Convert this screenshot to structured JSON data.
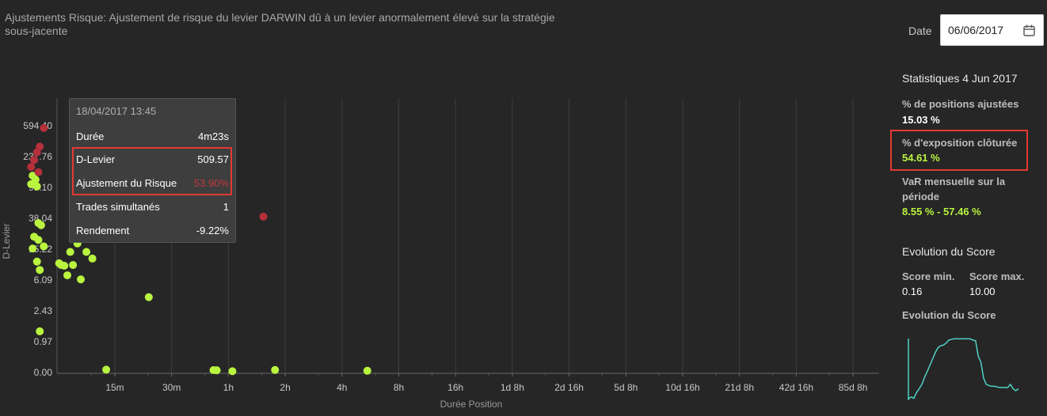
{
  "chart_data": {
    "type": "scatter",
    "title": "Ajustements Risque: Ajustement de risque du levier DARWIN dû à un levier anormalement élevé sur la stratégie sous-jacente",
    "xlabel": "Durée Position",
    "ylabel": "D-Levier",
    "x_scale": "log",
    "y_scale": "log",
    "x_ticks": [
      "15m",
      "30m",
      "1h",
      "2h",
      "4h",
      "8h",
      "16h",
      "1d 8h",
      "2d 16h",
      "5d 8h",
      "10d 16h",
      "21d 8h",
      "42d 16h",
      "85d 8h"
    ],
    "y_ticks": [
      "0.00",
      "0.97",
      "2.43",
      "6.09",
      "15.22",
      "38.04",
      "95.10",
      "237.76",
      "594.40"
    ],
    "y_top_tick": "594.40",
    "series": [
      {
        "color": "#b9f53f",
        "points": [
          {
            "x_min": 5.5,
            "y": 135
          },
          {
            "x_min": 5.7,
            "y": 120
          },
          {
            "x_min": 5.4,
            "y": 105
          },
          {
            "x_min": 5.8,
            "y": 98
          },
          {
            "x_min": 5.9,
            "y": 33
          },
          {
            "x_min": 6.1,
            "y": 31
          },
          {
            "x_min": 5.6,
            "y": 22
          },
          {
            "x_min": 5.9,
            "y": 20
          },
          {
            "x_min": 5.5,
            "y": 15.5
          },
          {
            "x_min": 6.3,
            "y": 16.5
          },
          {
            "x_min": 5.8,
            "y": 10.5
          },
          {
            "x_min": 6.0,
            "y": 8.2
          },
          {
            "x_min": 7.6,
            "y": 10.0
          },
          {
            "x_min": 7.8,
            "y": 9.5
          },
          {
            "x_min": 8.1,
            "y": 9.3
          },
          {
            "x_min": 8.4,
            "y": 7.0
          },
          {
            "x_min": 8.7,
            "y": 14.0
          },
          {
            "x_min": 9.0,
            "y": 9.5
          },
          {
            "x_min": 9.5,
            "y": 18.0
          },
          {
            "x_min": 9.9,
            "y": 6.2
          },
          {
            "x_min": 10.6,
            "y": 14.0
          },
          {
            "x_min": 11.4,
            "y": 11.5
          },
          {
            "x_min": 22.7,
            "y": 3.65
          },
          {
            "x_min": 6.0,
            "y": 1.32
          },
          {
            "x_min": 13.5,
            "y": 0.09
          },
          {
            "x_min": 50.0,
            "y": 0.075
          },
          {
            "x_min": 52.0,
            "y": 0.07
          },
          {
            "x_min": 63.0,
            "y": 0.04
          },
          {
            "x_min": 106.0,
            "y": 0.08
          },
          {
            "x_min": 327.0,
            "y": 0.055
          }
        ]
      },
      {
        "color": "#b5303a",
        "points": [
          {
            "x_min": 6.3,
            "y": 555
          },
          {
            "x_min": 6.0,
            "y": 320
          },
          {
            "x_min": 5.8,
            "y": 270
          },
          {
            "x_min": 5.6,
            "y": 215
          },
          {
            "x_min": 5.4,
            "y": 175
          },
          {
            "x_min": 5.9,
            "y": 150
          },
          {
            "x_min": 92.0,
            "y": 40
          }
        ]
      }
    ],
    "tooltip": {
      "date": "18/04/2017 13:45",
      "rows": [
        {
          "label": "Durée",
          "value": "4m23s"
        },
        {
          "label": "D-Levier",
          "value": "509.57"
        },
        {
          "label": "Ajustement du Risque",
          "value": "53.90%"
        },
        {
          "label": "Trades simultanés",
          "value": "1"
        },
        {
          "label": "Rendement",
          "value": "-9.22%"
        }
      ]
    }
  },
  "date_picker": {
    "label": "Date",
    "value": "06/06/2017",
    "icon": "calendar-icon"
  },
  "stats": {
    "title": "Statistiques 4 Jun 2017",
    "adjusted_label": "% de positions ajustées",
    "adjusted_value": "15.03 %",
    "closed_label": "% d'exposition clôturée",
    "closed_value": "54.61 %",
    "var_label_1": "VaR mensuelle sur la",
    "var_label_2": "période",
    "var_value": "8.55 % - 57.46 %"
  },
  "score": {
    "title": "Evolution du Score",
    "min_label": "Score min.",
    "min_value": "0.16",
    "max_label": "Score max.",
    "max_value": "10.00",
    "evolution_label": "Evolution du Score",
    "line_color": "#4fd1c5",
    "sparkline": [
      0.2,
      0.5,
      0.3,
      1.2,
      1.8,
      2.5,
      3.6,
      4.5,
      5.5,
      6.5,
      7.5,
      8.3,
      8.6,
      8.7,
      9.0,
      9.5,
      9.6,
      9.7,
      9.7,
      9.7,
      9.7,
      9.7,
      9.7,
      9.7,
      9.5,
      9.4,
      7.0,
      6.0,
      3.5,
      2.5,
      2.3,
      2.2,
      2.2,
      2.1,
      2.0,
      2.0,
      2.0,
      2.0,
      2.5,
      1.8,
      1.5,
      1.8
    ]
  }
}
